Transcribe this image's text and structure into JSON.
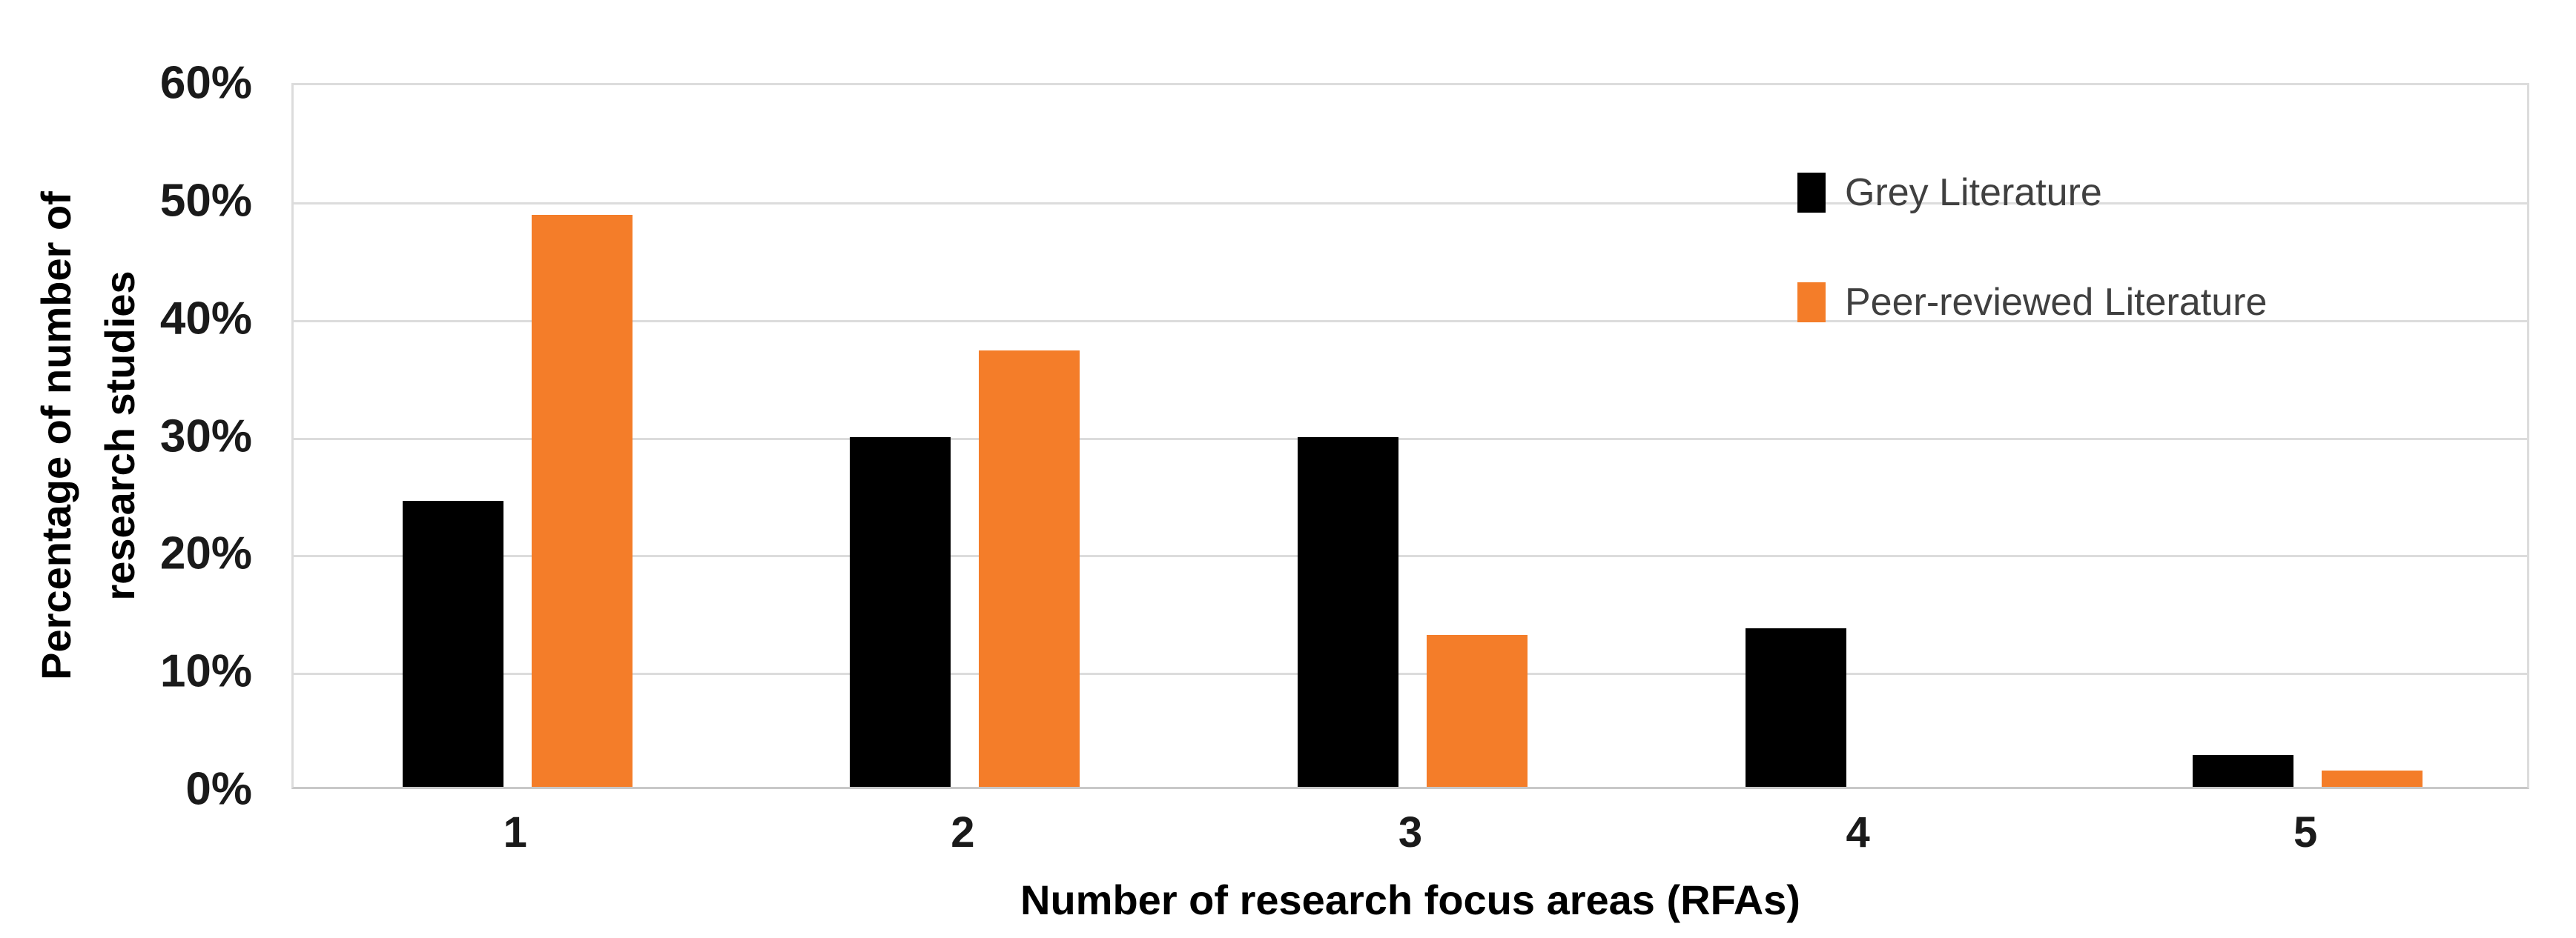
{
  "chart_data": {
    "type": "bar",
    "categories": [
      "1",
      "2",
      "3",
      "4",
      "5"
    ],
    "series": [
      {
        "name": "Grey Literature",
        "color": "#000000",
        "values": [
          24.3,
          29.7,
          29.7,
          13.5,
          2.7
        ]
      },
      {
        "name": "Peer-reviewed Literature",
        "color": "#F47D29",
        "values": [
          48.6,
          37.1,
          12.9,
          0,
          1.4
        ]
      }
    ],
    "title": "",
    "xlabel": "Number of research focus areas (RFAs)",
    "ylabel": "Percentage of number of research studies",
    "ylabel_lines": [
      "Percentage of number of",
      "research studies"
    ],
    "ylim": [
      0,
      60
    ],
    "ytick_step": 10,
    "ytick_labels": [
      "0%",
      "10%",
      "20%",
      "30%",
      "40%",
      "50%",
      "60%"
    ],
    "grid": true,
    "legend_position": "upper-right",
    "colors": {
      "grid": "#DCDCDC",
      "axis": "#C8C8C8",
      "tick_text": "#1A1A1A",
      "legend_text": "#404040",
      "background": "#FFFFFF"
    }
  }
}
